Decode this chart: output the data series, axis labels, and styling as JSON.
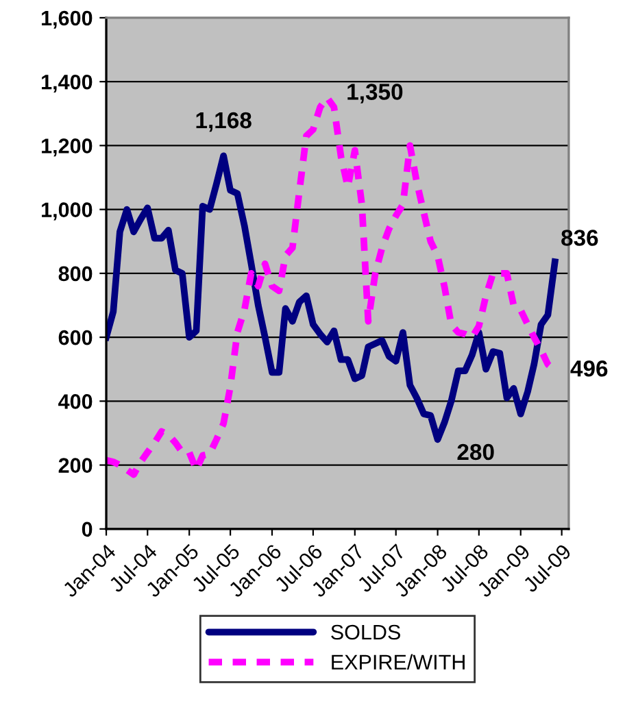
{
  "chart_data": {
    "type": "line",
    "x": [
      "2004-01",
      "2004-02",
      "2004-03",
      "2004-04",
      "2004-05",
      "2004-06",
      "2004-07",
      "2004-08",
      "2004-09",
      "2004-10",
      "2004-11",
      "2004-12",
      "2005-01",
      "2005-02",
      "2005-03",
      "2005-04",
      "2005-05",
      "2005-06",
      "2005-07",
      "2005-08",
      "2005-09",
      "2005-10",
      "2005-11",
      "2005-12",
      "2006-01",
      "2006-02",
      "2006-03",
      "2006-04",
      "2006-05",
      "2006-06",
      "2006-07",
      "2006-08",
      "2006-09",
      "2006-10",
      "2006-11",
      "2006-12",
      "2007-01",
      "2007-02",
      "2007-03",
      "2007-04",
      "2007-05",
      "2007-06",
      "2007-07",
      "2007-08",
      "2007-09",
      "2007-10",
      "2007-11",
      "2007-12",
      "2008-01",
      "2008-02",
      "2008-03",
      "2008-04",
      "2008-05",
      "2008-06",
      "2008-07",
      "2008-08",
      "2008-09",
      "2008-10",
      "2008-11",
      "2008-12",
      "2009-01",
      "2009-02",
      "2009-03",
      "2009-04",
      "2009-05",
      "2009-06"
    ],
    "series": [
      {
        "name": "SOLDS",
        "color": "#000080",
        "line_style": "solid",
        "values": [
          600,
          680,
          930,
          1000,
          930,
          970,
          1005,
          910,
          910,
          935,
          810,
          800,
          600,
          620,
          1010,
          1000,
          1080,
          1168,
          1060,
          1050,
          950,
          830,
          700,
          600,
          490,
          490,
          690,
          650,
          710,
          730,
          640,
          610,
          585,
          620,
          530,
          530,
          470,
          480,
          570,
          580,
          590,
          540,
          525,
          615,
          450,
          410,
          360,
          355,
          280,
          335,
          400,
          495,
          495,
          545,
          615,
          500,
          555,
          550,
          410,
          440,
          360,
          430,
          515,
          640,
          670,
          836
        ]
      },
      {
        "name": "EXPIRE/WITH",
        "color": "#ff00ff",
        "line_style": "dashed",
        "values": [
          215,
          210,
          200,
          185,
          170,
          210,
          240,
          270,
          305,
          295,
          270,
          240,
          240,
          185,
          230,
          235,
          280,
          330,
          445,
          615,
          685,
          800,
          760,
          830,
          760,
          745,
          855,
          880,
          1055,
          1230,
          1250,
          1320,
          1350,
          1320,
          1165,
          1070,
          1185,
          1015,
          650,
          800,
          880,
          940,
          980,
          1015,
          1200,
          1085,
          990,
          900,
          855,
          755,
          640,
          615,
          610,
          600,
          635,
          730,
          800,
          800,
          800,
          700,
          685,
          640,
          600,
          560,
          515,
          496
        ]
      }
    ],
    "ylim": [
      0,
      1600
    ],
    "yticks": [
      0,
      200,
      400,
      600,
      800,
      {
        "value": 1000,
        "label": "1,000"
      },
      {
        "value": 1200,
        "label": "1,200"
      },
      {
        "value": 1400,
        "label": "1,400"
      },
      {
        "value": 1600,
        "label": "1,600"
      }
    ],
    "xlim": [
      "2004-01",
      "2009-08"
    ],
    "xticks": [
      {
        "value": "2004-01",
        "label": "Jan-04"
      },
      {
        "value": "2004-07",
        "label": "Jul-04"
      },
      {
        "value": "2005-01",
        "label": "Jan-05"
      },
      {
        "value": "2005-07",
        "label": "Jul-05"
      },
      {
        "value": "2006-01",
        "label": "Jan-06"
      },
      {
        "value": "2006-07",
        "label": "Jul-06"
      },
      {
        "value": "2007-01",
        "label": "Jan-07"
      },
      {
        "value": "2007-07",
        "label": "Jul-07"
      },
      {
        "value": "2008-01",
        "label": "Jan-08"
      },
      {
        "value": "2008-07",
        "label": "Jul-08"
      },
      {
        "value": "2009-01",
        "label": "Jan-09"
      },
      {
        "value": "2009-07",
        "label": "Jul-09"
      }
    ],
    "grid": "y",
    "legend": "bottom",
    "annotations": [
      {
        "text": "1,168",
        "x": "2005-06",
        "y": 1168
      },
      {
        "text": "1,350",
        "x": "2006-09",
        "y": 1350
      },
      {
        "text": "280",
        "x": "2008-01",
        "y": 280
      },
      {
        "text": "836",
        "x": "2009-06",
        "y": 836
      },
      {
        "text": "496",
        "x": "2009-06",
        "y": 496
      }
    ]
  }
}
